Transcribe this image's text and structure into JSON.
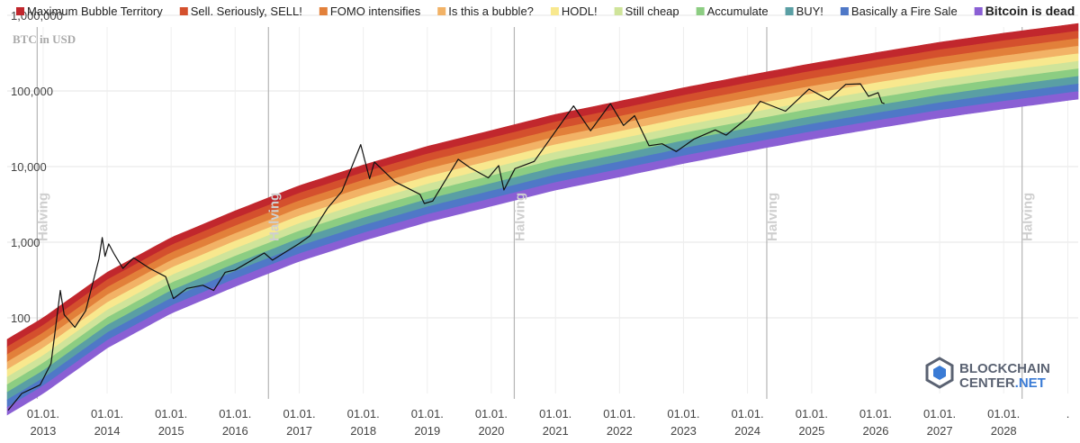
{
  "chart_data": {
    "type": "area",
    "ylabel": "BTC in USD",
    "y_scale": "log",
    "ylim": [
      10,
      700000
    ],
    "x_range": [
      "2012-06-10",
      "2029-03-01"
    ],
    "y_ticks": [
      {
        "value": 100,
        "label": "100"
      },
      {
        "value": 1000,
        "label": "1,000"
      },
      {
        "value": 10000,
        "label": "10,000"
      },
      {
        "value": 100000,
        "label": "100,000"
      },
      {
        "value": 1000000,
        "label": "1,000,000"
      }
    ],
    "x_ticks": [
      {
        "date": "2013-01-01",
        "line1": "01.01.",
        "line2": "2013"
      },
      {
        "date": "2014-01-01",
        "line1": "01.01.",
        "line2": "2014"
      },
      {
        "date": "2015-01-01",
        "line1": "01.01.",
        "line2": "2015"
      },
      {
        "date": "2016-01-01",
        "line1": "01.01.",
        "line2": "2016"
      },
      {
        "date": "2017-01-01",
        "line1": "01.01.",
        "line2": "2017"
      },
      {
        "date": "2018-01-01",
        "line1": "01.01.",
        "line2": "2018"
      },
      {
        "date": "2019-01-01",
        "line1": "01.01.",
        "line2": "2019"
      },
      {
        "date": "2020-01-01",
        "line1": "01.01.",
        "line2": "2020"
      },
      {
        "date": "2021-01-01",
        "line1": "01.01.",
        "line2": "2021"
      },
      {
        "date": "2022-01-01",
        "line1": "01.01.",
        "line2": "2022"
      },
      {
        "date": "2023-01-01",
        "line1": "01.01.",
        "line2": "2023"
      },
      {
        "date": "2024-01-01",
        "line1": "01.01.",
        "line2": "2024"
      },
      {
        "date": "2025-01-01",
        "line1": "01.01.",
        "line2": "2025"
      },
      {
        "date": "2026-01-01",
        "line1": "01.01.",
        "line2": "2026"
      },
      {
        "date": "2027-01-01",
        "line1": "01.01.",
        "line2": "2027"
      },
      {
        "date": "2028-01-01",
        "line1": "01.01.",
        "line2": "2028"
      },
      {
        "date": "2029-01-01",
        "line1": ".",
        "line2": ""
      }
    ],
    "halvings": [
      {
        "date": "2012-11-28",
        "label": "Halving"
      },
      {
        "date": "2016-07-09",
        "label": "Halving"
      },
      {
        "date": "2020-05-11",
        "label": "Halving"
      },
      {
        "date": "2024-04-20",
        "label": "Halving"
      },
      {
        "date": "2028-04-15",
        "label": "Halving"
      }
    ],
    "bands": [
      {
        "name": "Maximum Bubble Territory",
        "color": "#c1272d",
        "bold": false
      },
      {
        "name": "Sell. Seriously, SELL!",
        "color": "#d4502d",
        "bold": false
      },
      {
        "name": "FOMO intensifies",
        "color": "#e2803a",
        "bold": false
      },
      {
        "name": "Is this a bubble?",
        "color": "#f2b266",
        "bold": false
      },
      {
        "name": "HODL!",
        "color": "#f8e88e",
        "bold": false
      },
      {
        "name": "Still cheap",
        "color": "#cfe49a",
        "bold": false
      },
      {
        "name": "Accumulate",
        "color": "#8ccd82",
        "bold": false
      },
      {
        "name": "BUY!",
        "color": "#5a9fa4",
        "bold": false
      },
      {
        "name": "Basically a Fire Sale",
        "color": "#4f78c7",
        "bold": false
      },
      {
        "name": "Bitcoin is dead",
        "color": "#8a5fd4",
        "bold": true
      }
    ],
    "band_bottom_anchors": [
      [
        "2012-06-10",
        5.2
      ],
      [
        "2013-01-01",
        10
      ],
      [
        "2014-01-01",
        40
      ],
      [
        "2015-01-01",
        115
      ],
      [
        "2016-01-01",
        260
      ],
      [
        "2017-01-01",
        560
      ],
      [
        "2018-01-01",
        1050
      ],
      [
        "2019-01-01",
        1850
      ],
      [
        "2020-01-01",
        3000
      ],
      [
        "2021-01-01",
        4900
      ],
      [
        "2022-01-01",
        7300
      ],
      [
        "2023-01-01",
        11000
      ],
      [
        "2024-01-01",
        16000
      ],
      [
        "2025-01-01",
        23000
      ],
      [
        "2026-01-01",
        32000
      ],
      [
        "2027-01-01",
        44000
      ],
      [
        "2028-01-01",
        58000
      ],
      [
        "2029-03-01",
        78000
      ]
    ],
    "band_step_log10": 0.1,
    "price_series": [
      [
        "2012-06-15",
        6
      ],
      [
        "2012-09-01",
        10
      ],
      [
        "2012-12-15",
        13
      ],
      [
        "2013-02-15",
        25
      ],
      [
        "2013-04-09",
        230
      ],
      [
        "2013-05-01",
        110
      ],
      [
        "2013-07-01",
        75
      ],
      [
        "2013-09-01",
        125
      ],
      [
        "2013-11-15",
        600
      ],
      [
        "2013-12-04",
        1150
      ],
      [
        "2013-12-20",
        650
      ],
      [
        "2014-01-10",
        950
      ],
      [
        "2014-02-10",
        700
      ],
      [
        "2014-04-01",
        450
      ],
      [
        "2014-06-01",
        620
      ],
      [
        "2014-09-01",
        450
      ],
      [
        "2014-12-01",
        350
      ],
      [
        "2015-01-14",
        180
      ],
      [
        "2015-04-01",
        245
      ],
      [
        "2015-07-01",
        270
      ],
      [
        "2015-09-01",
        230
      ],
      [
        "2015-11-05",
        400
      ],
      [
        "2016-01-01",
        430
      ],
      [
        "2016-06-15",
        720
      ],
      [
        "2016-08-01",
        580
      ],
      [
        "2016-12-31",
        960
      ],
      [
        "2017-03-01",
        1200
      ],
      [
        "2017-06-10",
        2800
      ],
      [
        "2017-09-01",
        4700
      ],
      [
        "2017-12-17",
        19500
      ],
      [
        "2018-02-06",
        6900
      ],
      [
        "2018-03-05",
        11500
      ],
      [
        "2018-06-30",
        6300
      ],
      [
        "2018-11-20",
        4300
      ],
      [
        "2018-12-15",
        3250
      ],
      [
        "2019-02-01",
        3500
      ],
      [
        "2019-06-26",
        12500
      ],
      [
        "2019-09-01",
        9700
      ],
      [
        "2019-12-15",
        7100
      ],
      [
        "2020-02-12",
        10300
      ],
      [
        "2020-03-13",
        4900
      ],
      [
        "2020-05-15",
        9400
      ],
      [
        "2020-09-01",
        11700
      ],
      [
        "2020-12-31",
        29000
      ],
      [
        "2021-04-14",
        63500
      ],
      [
        "2021-07-20",
        29800
      ],
      [
        "2021-11-10",
        68000
      ],
      [
        "2022-01-24",
        35000
      ],
      [
        "2022-03-28",
        47000
      ],
      [
        "2022-06-18",
        18900
      ],
      [
        "2022-09-01",
        20000
      ],
      [
        "2022-11-21",
        15800
      ],
      [
        "2023-03-01",
        23000
      ],
      [
        "2023-07-01",
        30500
      ],
      [
        "2023-09-01",
        26000
      ],
      [
        "2024-01-01",
        44000
      ],
      [
        "2024-03-14",
        73000
      ],
      [
        "2024-08-05",
        54000
      ],
      [
        "2024-12-17",
        106000
      ],
      [
        "2025-04-08",
        76500
      ],
      [
        "2025-07-14",
        122000
      ],
      [
        "2025-10-06",
        124000
      ],
      [
        "2025-11-21",
        85000
      ],
      [
        "2026-01-15",
        95000
      ],
      [
        "2026-02-05",
        70000
      ],
      [
        "2026-02-20",
        68000
      ]
    ]
  },
  "branding": {
    "line1": "BLOCKCHAIN",
    "line2_prefix": "CENTER",
    "line2_suffix": ".NET",
    "icon": "blockchain-cube-icon",
    "accent_color": "#3a7bd5"
  }
}
